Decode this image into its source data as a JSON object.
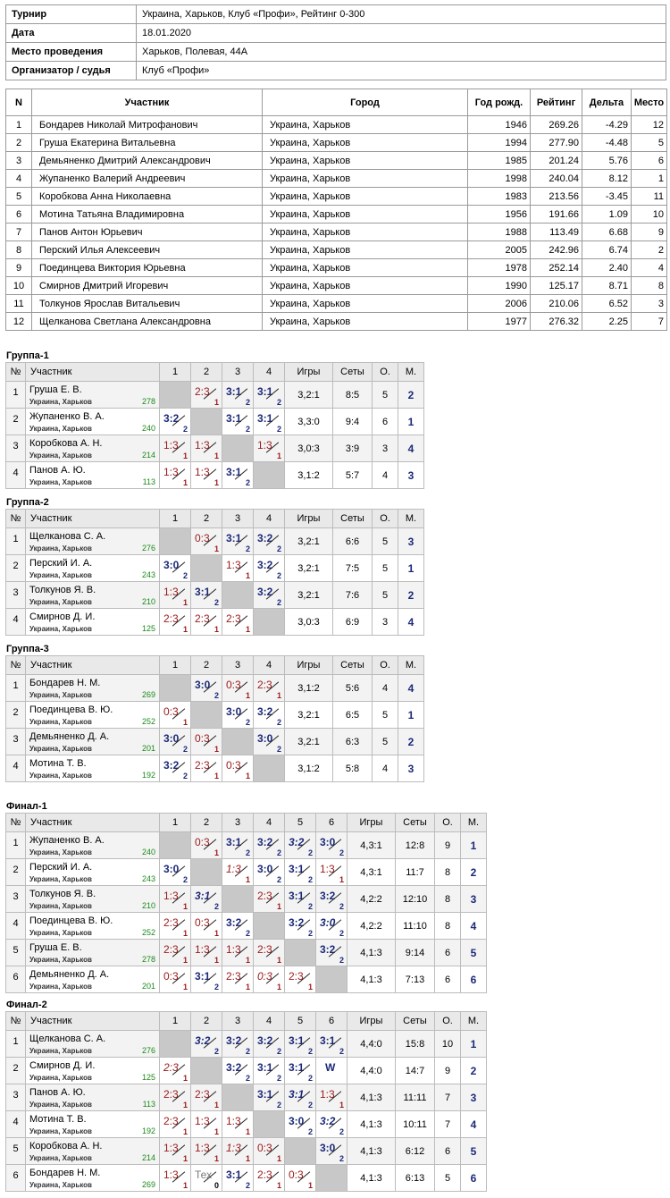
{
  "info": [
    {
      "k": "Турнир",
      "v": "Украина, Харьков, Клуб «Профи», Рейтинг 0-300"
    },
    {
      "k": "Дата",
      "v": "18.01.2020"
    },
    {
      "k": "Место проведения",
      "v": "Харьков, Полевая, 44А"
    },
    {
      "k": "Организатор / судья",
      "v": "Клуб «Профи»"
    }
  ],
  "participants": {
    "headers": [
      "N",
      "Участник",
      "Город",
      "Год рожд.",
      "Рейтинг",
      "Дельта",
      "Место"
    ],
    "rows": [
      [
        "1",
        "Бондарев Николай Митрофанович",
        "Украина, Харьков",
        "1946",
        "269.26",
        "-4.29",
        "12"
      ],
      [
        "2",
        "Груша Екатерина Витальевна",
        "Украина, Харьков",
        "1994",
        "277.90",
        "-4.48",
        "5"
      ],
      [
        "3",
        "Демьяненко Дмитрий Александрович",
        "Украина, Харьков",
        "1985",
        "201.24",
        "5.76",
        "6"
      ],
      [
        "4",
        "Жупаненко Валерий Андреевич",
        "Украина, Харьков",
        "1998",
        "240.04",
        "8.12",
        "1"
      ],
      [
        "5",
        "Коробкова Анна Николаевна",
        "Украина, Харьков",
        "1983",
        "213.56",
        "-3.45",
        "11"
      ],
      [
        "6",
        "Мотина Татьяна Владимировна",
        "Украина, Харьков",
        "1956",
        "191.66",
        "1.09",
        "10"
      ],
      [
        "7",
        "Панов Антон Юрьевич",
        "Украина, Харьков",
        "1988",
        "113.49",
        "6.68",
        "9"
      ],
      [
        "8",
        "Перский Илья Алексеевич",
        "Украина, Харьков",
        "2005",
        "242.96",
        "6.74",
        "2"
      ],
      [
        "9",
        "Поединцева Виктория Юрьевна",
        "Украина, Харьков",
        "1978",
        "252.14",
        "2.40",
        "4"
      ],
      [
        "10",
        "Смирнов Дмитрий Игоревич",
        "Украина, Харьков",
        "1990",
        "125.17",
        "8.71",
        "8"
      ],
      [
        "11",
        "Толкунов Ярослав Витальевич",
        "Украина, Харьков",
        "2006",
        "210.06",
        "6.52",
        "3"
      ],
      [
        "12",
        "Щелканова Светлана Александровна",
        "Украина, Харьков",
        "1977",
        "276.32",
        "2.25",
        "7"
      ]
    ]
  },
  "group_headers": {
    "n": "№",
    "name": "Участник",
    "games": "Игры",
    "sets": "Сеты",
    "points": "О.",
    "place": "М."
  },
  "groups": [
    {
      "title": "Группа-1",
      "size": 4,
      "rows": [
        {
          "n": "1",
          "name": "Груша Е. В.",
          "city": "Украина, Харьков",
          "rating": "278",
          "cells": [
            null,
            [
              "2:3",
              "1",
              "l"
            ],
            [
              "3:1",
              "2",
              "w"
            ],
            [
              "3:1",
              "2",
              "w"
            ]
          ],
          "games": "3,2:1",
          "sets": "8:5",
          "points": "5",
          "place": "2"
        },
        {
          "n": "2",
          "name": "Жупаненко В. А.",
          "city": "Украина, Харьков",
          "rating": "240",
          "cells": [
            [
              "3:2",
              "2",
              "w"
            ],
            null,
            [
              "3:1",
              "2",
              "w"
            ],
            [
              "3:1",
              "2",
              "w"
            ]
          ],
          "games": "3,3:0",
          "sets": "9:4",
          "points": "6",
          "place": "1"
        },
        {
          "n": "3",
          "name": "Коробкова А. Н.",
          "city": "Украина, Харьков",
          "rating": "214",
          "cells": [
            [
              "1:3",
              "1",
              "l"
            ],
            [
              "1:3",
              "1",
              "l"
            ],
            null,
            [
              "1:3",
              "1",
              "l"
            ]
          ],
          "games": "3,0:3",
          "sets": "3:9",
          "points": "3",
          "place": "4"
        },
        {
          "n": "4",
          "name": "Панов А. Ю.",
          "city": "Украина, Харьков",
          "rating": "113",
          "cells": [
            [
              "1:3",
              "1",
              "l"
            ],
            [
              "1:3",
              "1",
              "l"
            ],
            [
              "3:1",
              "2",
              "w"
            ],
            null
          ],
          "games": "3,1:2",
          "sets": "5:7",
          "points": "4",
          "place": "3"
        }
      ]
    },
    {
      "title": "Группа-2",
      "size": 4,
      "rows": [
        {
          "n": "1",
          "name": "Щелканова С. А.",
          "city": "Украина, Харьков",
          "rating": "276",
          "cells": [
            null,
            [
              "0:3",
              "1",
              "l"
            ],
            [
              "3:1",
              "2",
              "w"
            ],
            [
              "3:2",
              "2",
              "w"
            ]
          ],
          "games": "3,2:1",
          "sets": "6:6",
          "points": "5",
          "place": "3"
        },
        {
          "n": "2",
          "name": "Перский И. А.",
          "city": "Украина, Харьков",
          "rating": "243",
          "cells": [
            [
              "3:0",
              "2",
              "w"
            ],
            null,
            [
              "1:3",
              "1",
              "l"
            ],
            [
              "3:2",
              "2",
              "w"
            ]
          ],
          "games": "3,2:1",
          "sets": "7:5",
          "points": "5",
          "place": "1"
        },
        {
          "n": "3",
          "name": "Толкунов Я. В.",
          "city": "Украина, Харьков",
          "rating": "210",
          "cells": [
            [
              "1:3",
              "1",
              "l"
            ],
            [
              "3:1",
              "2",
              "w"
            ],
            null,
            [
              "3:2",
              "2",
              "w"
            ]
          ],
          "games": "3,2:1",
          "sets": "7:6",
          "points": "5",
          "place": "2"
        },
        {
          "n": "4",
          "name": "Смирнов Д. И.",
          "city": "Украина, Харьков",
          "rating": "125",
          "cells": [
            [
              "2:3",
              "1",
              "l"
            ],
            [
              "2:3",
              "1",
              "l"
            ],
            [
              "2:3",
              "1",
              "l"
            ],
            null
          ],
          "games": "3,0:3",
          "sets": "6:9",
          "points": "3",
          "place": "4"
        }
      ]
    },
    {
      "title": "Группа-3",
      "size": 4,
      "rows": [
        {
          "n": "1",
          "name": "Бондарев Н. М.",
          "city": "Украина, Харьков",
          "rating": "269",
          "cells": [
            null,
            [
              "3:0",
              "2",
              "w"
            ],
            [
              "0:3",
              "1",
              "l"
            ],
            [
              "2:3",
              "1",
              "l"
            ]
          ],
          "games": "3,1:2",
          "sets": "5:6",
          "points": "4",
          "place": "4"
        },
        {
          "n": "2",
          "name": "Поединцева В. Ю.",
          "city": "Украина, Харьков",
          "rating": "252",
          "cells": [
            [
              "0:3",
              "1",
              "l"
            ],
            null,
            [
              "3:0",
              "2",
              "w"
            ],
            [
              "3:2",
              "2",
              "w"
            ]
          ],
          "games": "3,2:1",
          "sets": "6:5",
          "points": "5",
          "place": "1"
        },
        {
          "n": "3",
          "name": "Демьяненко Д. А.",
          "city": "Украина, Харьков",
          "rating": "201",
          "cells": [
            [
              "3:0",
              "2",
              "w"
            ],
            [
              "0:3",
              "1",
              "l"
            ],
            null,
            [
              "3:0",
              "2",
              "w"
            ]
          ],
          "games": "3,2:1",
          "sets": "6:3",
          "points": "5",
          "place": "2"
        },
        {
          "n": "4",
          "name": "Мотина Т. В.",
          "city": "Украина, Харьков",
          "rating": "192",
          "cells": [
            [
              "3:2",
              "2",
              "w"
            ],
            [
              "2:3",
              "1",
              "l"
            ],
            [
              "0:3",
              "1",
              "l"
            ],
            null
          ],
          "games": "3,1:2",
          "sets": "5:8",
          "points": "4",
          "place": "3"
        }
      ]
    },
    {
      "title": "Финал-1",
      "size": 6,
      "rows": [
        {
          "n": "1",
          "name": "Жупаненко В. А.",
          "city": "Украина, Харьков",
          "rating": "240",
          "cells": [
            null,
            [
              "0:3",
              "1",
              "l"
            ],
            [
              "3:1",
              "2",
              "w"
            ],
            [
              "3:2",
              "2",
              "w"
            ],
            [
              "3:2",
              "2",
              "wx"
            ],
            [
              "3:0",
              "2",
              "w"
            ]
          ],
          "games": "4,3:1",
          "sets": "12:8",
          "points": "9",
          "place": "1"
        },
        {
          "n": "2",
          "name": "Перский И. А.",
          "city": "Украина, Харьков",
          "rating": "243",
          "cells": [
            [
              "3:0",
              "2",
              "w"
            ],
            null,
            [
              "1:3",
              "1",
              "lx"
            ],
            [
              "3:0",
              "2",
              "w"
            ],
            [
              "3:1",
              "2",
              "w"
            ],
            [
              "1:3",
              "1",
              "l"
            ]
          ],
          "games": "4,3:1",
          "sets": "11:7",
          "points": "8",
          "place": "2"
        },
        {
          "n": "3",
          "name": "Толкунов Я. В.",
          "city": "Украина, Харьков",
          "rating": "210",
          "cells": [
            [
              "1:3",
              "1",
              "l"
            ],
            [
              "3:1",
              "2",
              "wxn"
            ],
            null,
            [
              "2:3",
              "1",
              "l"
            ],
            [
              "3:1",
              "2",
              "w"
            ],
            [
              "3:2",
              "2",
              "w"
            ]
          ],
          "games": "4,2:2",
          "sets": "12:10",
          "points": "8",
          "place": "3"
        },
        {
          "n": "4",
          "name": "Поединцева В. Ю.",
          "city": "Украина, Харьков",
          "rating": "252",
          "cells": [
            [
              "2:3",
              "1",
              "l"
            ],
            [
              "0:3",
              "1",
              "l"
            ],
            [
              "3:2",
              "2",
              "w"
            ],
            null,
            [
              "3:2",
              "2",
              "w"
            ],
            [
              "3:0",
              "2",
              "wxn"
            ]
          ],
          "games": "4,2:2",
          "sets": "11:10",
          "points": "8",
          "place": "4"
        },
        {
          "n": "5",
          "name": "Груша Е. В.",
          "city": "Украина, Харьков",
          "rating": "278",
          "cells": [
            [
              "2:3",
              "1",
              "l"
            ],
            [
              "1:3",
              "1",
              "l"
            ],
            [
              "1:3",
              "1",
              "l"
            ],
            [
              "2:3",
              "1",
              "l"
            ],
            null,
            [
              "3:2",
              "2",
              "w"
            ]
          ],
          "games": "4,1:3",
          "sets": "9:14",
          "points": "6",
          "place": "5"
        },
        {
          "n": "6",
          "name": "Демьяненко Д. А.",
          "city": "Украина, Харьков",
          "rating": "201",
          "cells": [
            [
              "0:3",
              "1",
              "l"
            ],
            [
              "3:1",
              "2",
              "w"
            ],
            [
              "2:3",
              "1",
              "l"
            ],
            [
              "0:3",
              "1",
              "lx"
            ],
            [
              "2:3",
              "1",
              "l"
            ],
            null
          ],
          "games": "4,1:3",
          "sets": "7:13",
          "points": "6",
          "place": "6"
        }
      ]
    },
    {
      "title": "Финал-2",
      "size": 6,
      "rows": [
        {
          "n": "1",
          "name": "Щелканова С. А.",
          "city": "Украина, Харьков",
          "rating": "276",
          "cells": [
            null,
            [
              "3:2",
              "2",
              "wxn"
            ],
            [
              "3:2",
              "2",
              "w"
            ],
            [
              "3:2",
              "2",
              "w"
            ],
            [
              "3:1",
              "2",
              "w"
            ],
            [
              "3:1",
              "2",
              "w"
            ]
          ],
          "games": "4,4:0",
          "sets": "15:8",
          "points": "10",
          "place": "1"
        },
        {
          "n": "2",
          "name": "Смирнов Д. И.",
          "city": "Украина, Харьков",
          "rating": "125",
          "cells": [
            [
              "2:3",
              "1",
              "lx"
            ],
            null,
            [
              "3:2",
              "2",
              "w"
            ],
            [
              "3:1",
              "2",
              "w"
            ],
            [
              "3:1",
              "2",
              "w"
            ],
            [
              "W",
              "2",
              "wo"
            ]
          ],
          "games": "4,4:0",
          "sets": "14:7",
          "points": "9",
          "place": "2"
        },
        {
          "n": "3",
          "name": "Панов А. Ю.",
          "city": "Украина, Харьков",
          "rating": "113",
          "cells": [
            [
              "2:3",
              "1",
              "l"
            ],
            [
              "2:3",
              "1",
              "l"
            ],
            null,
            [
              "3:1",
              "2",
              "w"
            ],
            [
              "3:1",
              "2",
              "wxn"
            ],
            [
              "1:3",
              "1",
              "l"
            ]
          ],
          "games": "4,1:3",
          "sets": "11:11",
          "points": "7",
          "place": "3"
        },
        {
          "n": "4",
          "name": "Мотина Т. В.",
          "city": "Украина, Харьков",
          "rating": "192",
          "cells": [
            [
              "2:3",
              "1",
              "l"
            ],
            [
              "1:3",
              "1",
              "l"
            ],
            [
              "1:3",
              "1",
              "l"
            ],
            null,
            [
              "3:0",
              "2",
              "w"
            ],
            [
              "3:2",
              "2",
              "wxn"
            ]
          ],
          "games": "4,1:3",
          "sets": "10:11",
          "points": "7",
          "place": "4"
        },
        {
          "n": "5",
          "name": "Коробкова А. Н.",
          "city": "Украина, Харьков",
          "rating": "214",
          "cells": [
            [
              "1:3",
              "1",
              "l"
            ],
            [
              "1:3",
              "1",
              "l"
            ],
            [
              "1:3",
              "1",
              "lx"
            ],
            [
              "0:3",
              "1",
              "l"
            ],
            null,
            [
              "3:0",
              "2",
              "w"
            ]
          ],
          "games": "4,1:3",
          "sets": "6:12",
          "points": "6",
          "place": "5"
        },
        {
          "n": "6",
          "name": "Бондарев Н. М.",
          "city": "Украина, Харьков",
          "rating": "269",
          "cells": [
            [
              "1:3",
              "1",
              "l"
            ],
            [
              "Тех",
              "0",
              "tx"
            ],
            [
              "3:1",
              "2",
              "w"
            ],
            [
              "2:3",
              "1",
              "l"
            ],
            [
              "0:3",
              "1",
              "l"
            ],
            null
          ],
          "games": "4,1:3",
          "sets": "6:13",
          "points": "5",
          "place": "6"
        }
      ]
    }
  ]
}
